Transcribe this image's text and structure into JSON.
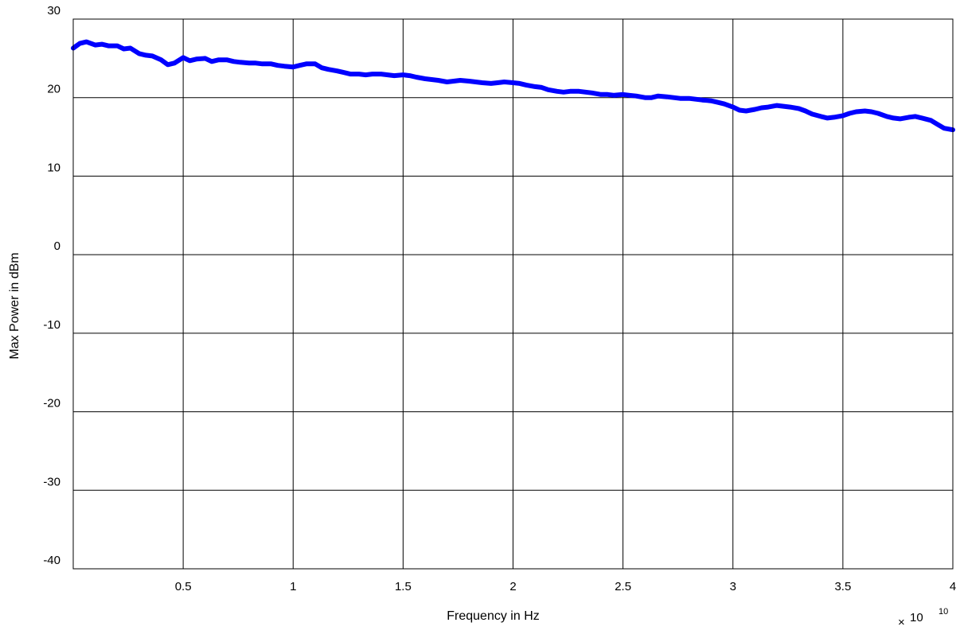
{
  "chart_data": {
    "type": "line",
    "title": "",
    "xlabel": "Frequency in Hz",
    "ylabel": "Max Power in dBm",
    "x_exponent_label": {
      "times": "×",
      "base": "10",
      "exponent": "10"
    },
    "xlim": [
      0,
      4
    ],
    "ylim": [
      -40,
      30
    ],
    "x_ticks": [
      0.5,
      1,
      1.5,
      2,
      2.5,
      3,
      3.5,
      4
    ],
    "x_tick_labels": [
      "0.5",
      "1",
      "1.5",
      "2",
      "2.5",
      "3",
      "3.5",
      "4"
    ],
    "y_ticks": [
      -40,
      -30,
      -20,
      -10,
      0,
      10,
      20,
      30
    ],
    "y_tick_labels": [
      "-40",
      "-30",
      "-20",
      "-10",
      "0",
      "10",
      "20",
      "30"
    ],
    "grid": true,
    "series": [
      {
        "color": "#0000ff",
        "x": [
          0,
          0.03,
          0.06,
          0.1,
          0.13,
          0.16,
          0.2,
          0.23,
          0.26,
          0.3,
          0.33,
          0.36,
          0.4,
          0.43,
          0.46,
          0.5,
          0.53,
          0.56,
          0.6,
          0.63,
          0.66,
          0.7,
          0.73,
          0.76,
          0.8,
          0.83,
          0.86,
          0.9,
          0.93,
          0.96,
          1.0,
          1.03,
          1.06,
          1.1,
          1.13,
          1.16,
          1.2,
          1.23,
          1.26,
          1.3,
          1.33,
          1.36,
          1.4,
          1.43,
          1.46,
          1.5,
          1.53,
          1.56,
          1.6,
          1.63,
          1.66,
          1.7,
          1.73,
          1.76,
          1.8,
          1.83,
          1.86,
          1.9,
          1.93,
          1.96,
          2.0,
          2.03,
          2.06,
          2.1,
          2.13,
          2.16,
          2.2,
          2.23,
          2.26,
          2.3,
          2.33,
          2.36,
          2.4,
          2.43,
          2.46,
          2.5,
          2.53,
          2.56,
          2.6,
          2.63,
          2.66,
          2.7,
          2.73,
          2.76,
          2.8,
          2.83,
          2.86,
          2.9,
          2.93,
          2.96,
          3.0,
          3.03,
          3.06,
          3.1,
          3.13,
          3.16,
          3.2,
          3.23,
          3.26,
          3.3,
          3.33,
          3.36,
          3.4,
          3.43,
          3.46,
          3.5,
          3.53,
          3.56,
          3.6,
          3.63,
          3.66,
          3.7,
          3.73,
          3.76,
          3.8,
          3.83,
          3.86,
          3.9,
          3.93,
          3.96,
          4.0
        ],
        "y": [
          26.3,
          26.9,
          27.1,
          26.7,
          26.8,
          26.6,
          26.6,
          26.2,
          26.3,
          25.6,
          25.4,
          25.3,
          24.8,
          24.2,
          24.4,
          25.1,
          24.7,
          24.9,
          25.0,
          24.6,
          24.8,
          24.8,
          24.6,
          24.5,
          24.4,
          24.4,
          24.3,
          24.3,
          24.1,
          24.0,
          23.9,
          24.1,
          24.3,
          24.3,
          23.8,
          23.6,
          23.4,
          23.2,
          23.0,
          23.0,
          22.9,
          23.0,
          23.0,
          22.9,
          22.8,
          22.9,
          22.8,
          22.6,
          22.4,
          22.3,
          22.2,
          22.0,
          22.1,
          22.2,
          22.1,
          22.0,
          21.9,
          21.8,
          21.9,
          22.0,
          21.9,
          21.8,
          21.6,
          21.4,
          21.3,
          21.0,
          20.8,
          20.7,
          20.8,
          20.8,
          20.7,
          20.6,
          20.4,
          20.4,
          20.3,
          20.4,
          20.3,
          20.2,
          20.0,
          20.0,
          20.2,
          20.1,
          20.0,
          19.9,
          19.9,
          19.8,
          19.7,
          19.6,
          19.4,
          19.2,
          18.8,
          18.4,
          18.3,
          18.5,
          18.7,
          18.8,
          19.0,
          18.9,
          18.8,
          18.6,
          18.3,
          17.9,
          17.6,
          17.4,
          17.5,
          17.7,
          18.0,
          18.2,
          18.3,
          18.2,
          18.0,
          17.6,
          17.4,
          17.3,
          17.5,
          17.6,
          17.4,
          17.1,
          16.6,
          16.1,
          15.9
        ]
      }
    ]
  }
}
